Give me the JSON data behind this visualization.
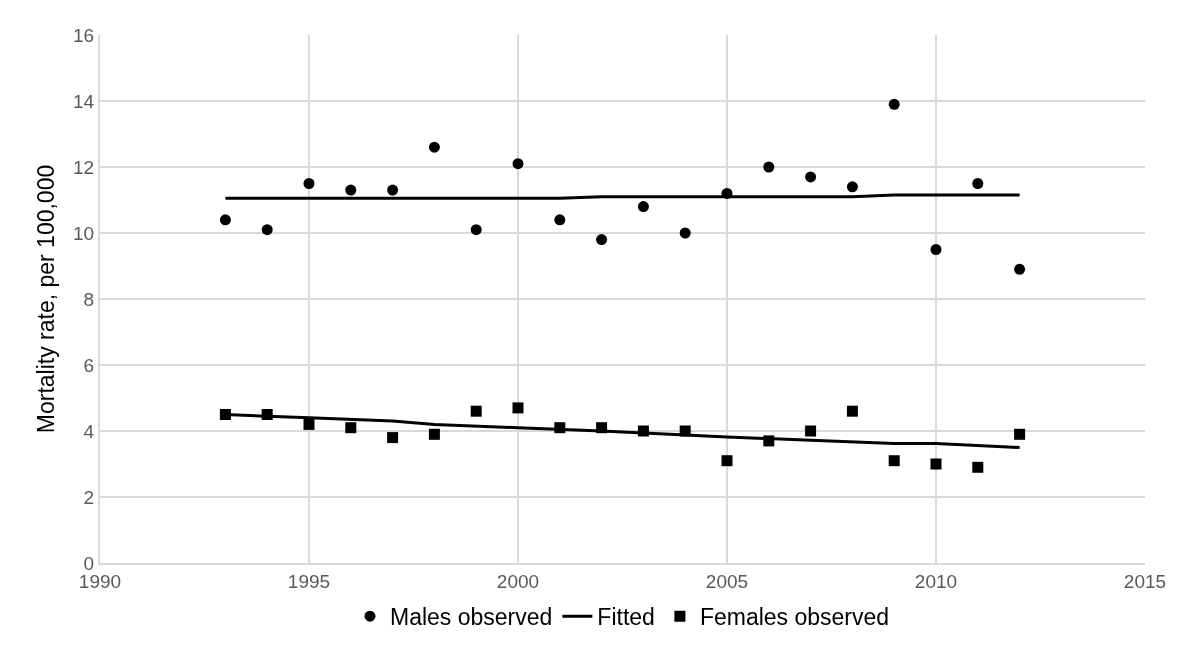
{
  "chart_data": {
    "type": "scatter",
    "ylabel": "Mortality rate, per 100,000",
    "xlim": [
      1990,
      2015
    ],
    "xticks": [
      1990,
      1995,
      2000,
      2005,
      2010,
      2015
    ],
    "ylim": [
      0,
      16
    ],
    "yticks": [
      0,
      2,
      4,
      6,
      8,
      10,
      12,
      14,
      16
    ],
    "grid": true,
    "legend": "bottom",
    "x": [
      1993,
      1994,
      1995,
      1996,
      1997,
      1998,
      1999,
      2000,
      2001,
      2002,
      2003,
      2004,
      2005,
      2006,
      2007,
      2008,
      2009,
      2010,
      2011,
      2012
    ],
    "series": [
      {
        "name": "Males observed",
        "type": "scatter",
        "marker": "circle",
        "color": "#000000",
        "values": [
          10.4,
          10.1,
          11.5,
          11.3,
          11.3,
          12.6,
          10.1,
          12.1,
          10.4,
          9.8,
          10.8,
          10.0,
          11.2,
          12.0,
          11.7,
          11.4,
          13.9,
          9.5,
          11.5,
          8.9
        ]
      },
      {
        "name": "Fitted",
        "type": "line",
        "marker": "none",
        "line_style": "solid",
        "color": "#000000",
        "x": [
          1993,
          2001,
          2002,
          2008,
          2009,
          2012
        ],
        "values": [
          11.05,
          11.05,
          11.1,
          11.1,
          11.15,
          11.15
        ]
      },
      {
        "name": "Females observed",
        "type": "scatter",
        "marker": "square",
        "color": "#000000",
        "values": [
          4.5,
          4.5,
          4.2,
          4.1,
          3.8,
          3.9,
          4.6,
          4.7,
          4.1,
          4.1,
          4.0,
          4.0,
          3.1,
          3.7,
          4.0,
          4.6,
          3.1,
          3.0,
          2.9,
          3.9
        ]
      },
      {
        "type": "line",
        "marker": "none",
        "line_style": "solid",
        "color": "#000000",
        "x": [
          1993,
          1995,
          1997,
          1998,
          2000,
          2002,
          2005,
          2007,
          2009,
          2010,
          2012
        ],
        "values": [
          4.5,
          4.4,
          4.3,
          4.2,
          4.1,
          4.0,
          3.82,
          3.72,
          3.62,
          3.62,
          3.5
        ]
      }
    ]
  }
}
